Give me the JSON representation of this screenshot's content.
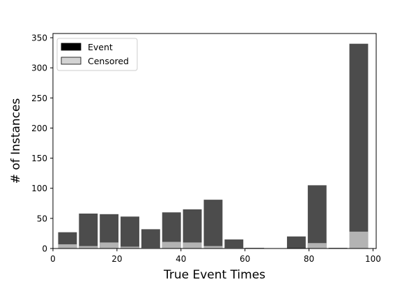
{
  "chart_data": {
    "type": "bar",
    "title": "",
    "xlabel": "True Event Times",
    "ylabel": "# of Instances",
    "xlim": [
      0,
      101
    ],
    "ylim": [
      0,
      357
    ],
    "xticks": [
      0,
      20,
      40,
      60,
      80,
      100
    ],
    "yticks": [
      0,
      50,
      100,
      150,
      200,
      250,
      300,
      350
    ],
    "bin_edges": [
      1.3,
      7.8,
      14.3,
      20.8,
      27.3,
      33.8,
      40.3,
      46.8,
      53.3,
      59.8,
      66.3,
      72.8,
      79.3,
      85.8,
      92.3,
      98.8
    ],
    "legend_position": "top-left",
    "grid": false,
    "series": [
      {
        "name": "Event",
        "color": "#4c4c4c",
        "legend_color": "#000000",
        "values": [
          27,
          58,
          57,
          53,
          32,
          60,
          65,
          81,
          15,
          1,
          0,
          20,
          105,
          1,
          340
        ]
      },
      {
        "name": "Censored",
        "color": "#b3b3b3",
        "legend_color": "#d3d3d3",
        "values": [
          7,
          4,
          10,
          3,
          1,
          11,
          10,
          4,
          1,
          0,
          0,
          0,
          9,
          0,
          28
        ]
      }
    ]
  }
}
